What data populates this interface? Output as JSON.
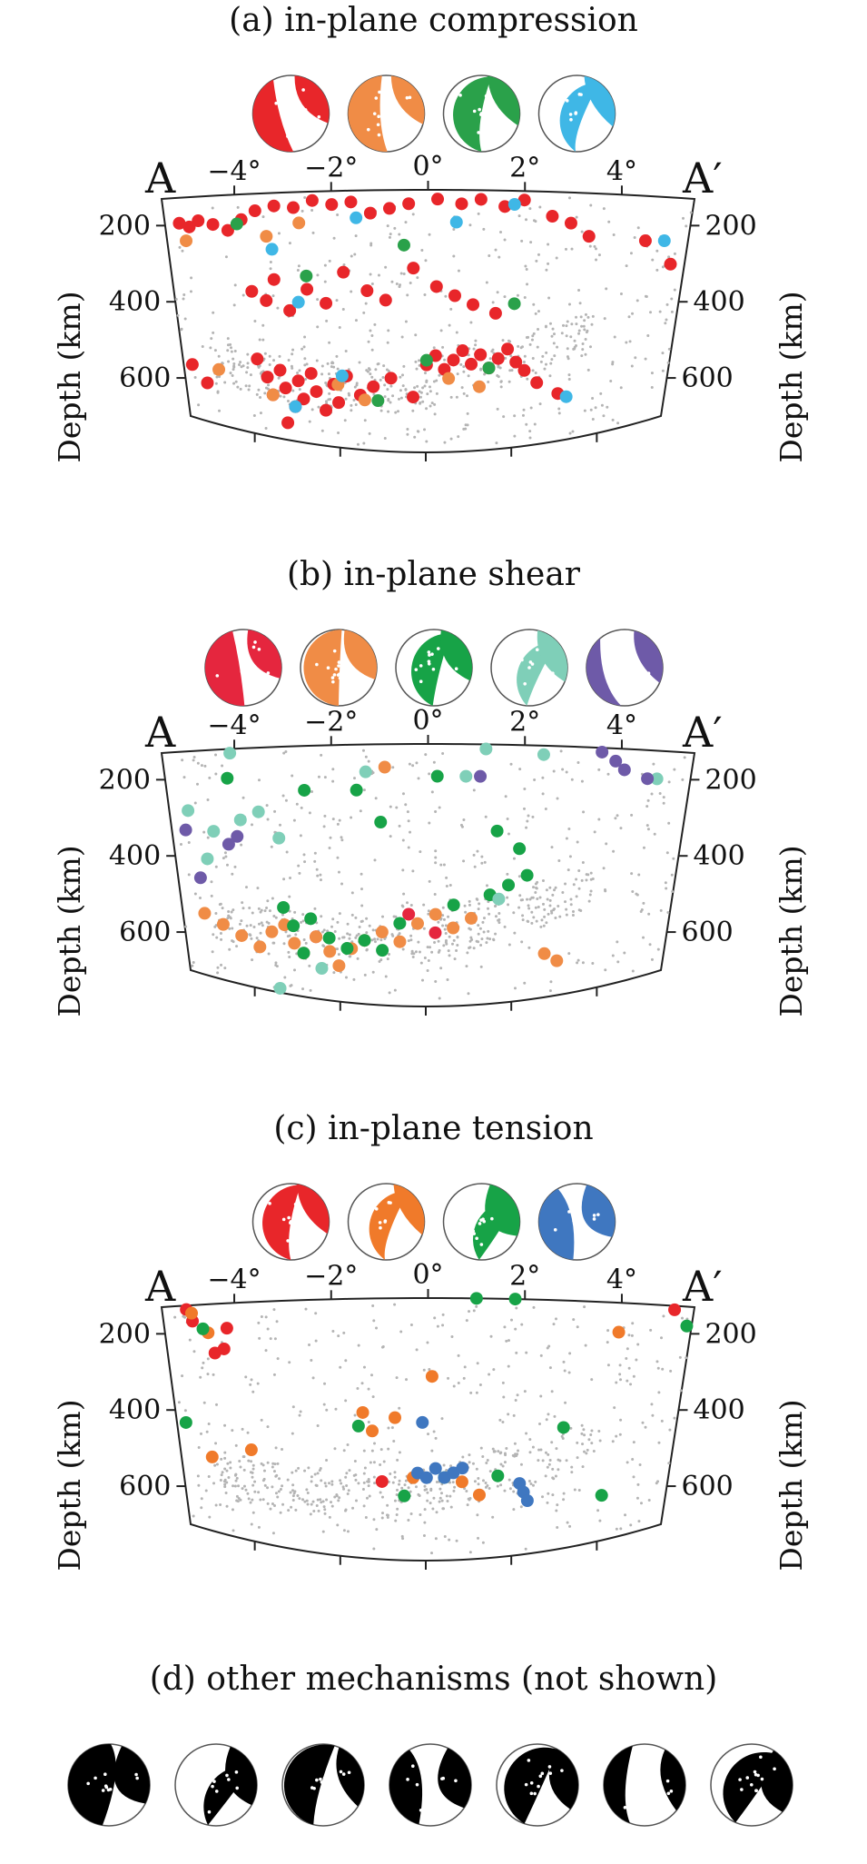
{
  "chart_data": [
    {
      "type": "scatter",
      "title": "(a) in-plane compression",
      "section_start_label": "A",
      "section_end_label": "A′",
      "xlabel": "",
      "ylabel": "Depth (km)",
      "xlim": [
        -5.5,
        5.5
      ],
      "ylim": [
        700,
        130
      ],
      "x_tick_labels": [
        "−4°",
        "−2°",
        "0°",
        "2°",
        "4°"
      ],
      "y_tick_labels": [
        "200",
        "400",
        "600"
      ],
      "mechanism_colors": [
        "#e8262a",
        "#f08c46",
        "#2aa14a",
        "#3fb7e6"
      ],
      "series": [
        {
          "color": "#e8262a",
          "points": [
            [
              -5.2,
              195
            ],
            [
              -5.0,
              205
            ],
            [
              -4.8,
              190
            ],
            [
              -4.5,
              200
            ],
            [
              -4.2,
              215
            ],
            [
              -3.9,
              190
            ],
            [
              -3.6,
              170
            ],
            [
              -3.2,
              160
            ],
            [
              -2.8,
              165
            ],
            [
              -2.4,
              150
            ],
            [
              -2.0,
              160
            ],
            [
              -1.6,
              155
            ],
            [
              -1.2,
              180
            ],
            [
              -0.8,
              170
            ],
            [
              -0.4,
              160
            ],
            [
              0.2,
              150
            ],
            [
              0.7,
              160
            ],
            [
              1.1,
              150
            ],
            [
              1.6,
              165
            ],
            [
              2.0,
              150
            ],
            [
              2.6,
              185
            ],
            [
              3.0,
              200
            ],
            [
              3.4,
              230
            ],
            [
              4.6,
              240
            ],
            [
              5.2,
              300
            ],
            [
              -3.8,
              360
            ],
            [
              -3.5,
              380
            ],
            [
              -3.3,
              330
            ],
            [
              -3.0,
              400
            ],
            [
              -2.6,
              350
            ],
            [
              -2.2,
              380
            ],
            [
              -1.8,
              310
            ],
            [
              -1.3,
              350
            ],
            [
              -0.9,
              370
            ],
            [
              -0.3,
              300
            ],
            [
              0.2,
              340
            ],
            [
              0.6,
              360
            ],
            [
              1.0,
              380
            ],
            [
              1.5,
              400
            ],
            [
              -3.8,
              520
            ],
            [
              -3.6,
              560
            ],
            [
              -3.5,
              600
            ],
            [
              -3.3,
              540
            ],
            [
              -3.2,
              580
            ],
            [
              -3.0,
              620
            ],
            [
              -2.9,
              560
            ],
            [
              -2.8,
              600
            ],
            [
              -2.6,
              540
            ],
            [
              -2.5,
              580
            ],
            [
              -2.3,
              620
            ],
            [
              -2.1,
              560
            ],
            [
              -2.0,
              600
            ],
            [
              -1.8,
              540
            ],
            [
              -1.5,
              580
            ],
            [
              -1.2,
              560
            ],
            [
              -0.8,
              540
            ],
            [
              -0.3,
              580
            ],
            [
              0.0,
              510
            ],
            [
              0.2,
              490
            ],
            [
              0.4,
              520
            ],
            [
              0.6,
              500
            ],
            [
              0.8,
              480
            ],
            [
              1.0,
              510
            ],
            [
              1.2,
              490
            ],
            [
              1.4,
              520
            ],
            [
              1.6,
              500
            ],
            [
              1.8,
              480
            ],
            [
              2.0,
              510
            ],
            [
              2.2,
              530
            ],
            [
              2.5,
              560
            ],
            [
              3.0,
              590
            ],
            [
              -5.3,
              560
            ],
            [
              -5.0,
              600
            ],
            [
              -3.2,
              660
            ]
          ]
        },
        {
          "color": "#f08c46",
          "points": [
            [
              -5.1,
              240
            ],
            [
              -3.4,
              230
            ],
            [
              -2.7,
              200
            ],
            [
              -3.5,
              600
            ],
            [
              -2.0,
              560
            ],
            [
              1.2,
              560
            ],
            [
              -4.7,
              560
            ],
            [
              -1.4,
              590
            ],
            [
              0.5,
              540
            ]
          ]
        },
        {
          "color": "#2aa14a",
          "points": [
            [
              -4.0,
              200
            ],
            [
              -0.5,
              250
            ],
            [
              1.9,
              380
            ],
            [
              -2.6,
              320
            ],
            [
              0.0,
              500
            ],
            [
              -1.1,
              590
            ],
            [
              1.4,
              520
            ]
          ]
        },
        {
          "color": "#3fb7e6",
          "points": [
            [
              -3.3,
              260
            ],
            [
              -1.5,
              190
            ],
            [
              0.6,
              200
            ],
            [
              1.8,
              160
            ],
            [
              -2.8,
              380
            ],
            [
              -3.0,
              620
            ],
            [
              5.0,
              240
            ],
            [
              3.2,
              600
            ],
            [
              -1.9,
              540
            ]
          ]
        }
      ]
    },
    {
      "type": "scatter",
      "title": "(b) in-plane shear",
      "section_start_label": "A",
      "section_end_label": "A′",
      "xlabel": "",
      "ylabel": "Depth (km)",
      "xlim": [
        -5.5,
        5.5
      ],
      "ylim": [
        700,
        130
      ],
      "x_tick_labels": [
        "−4°",
        "−2°",
        "0°",
        "2°",
        "4°"
      ],
      "y_tick_labels": [
        "200",
        "400",
        "600"
      ],
      "mechanism_colors": [
        "#e5263e",
        "#f08c46",
        "#17a347",
        "#7fcfb8",
        "#6e5aa8"
      ],
      "series": [
        {
          "color": "#e5263e",
          "points": [
            [
              -0.4,
              500
            ],
            [
              0.2,
              540
            ],
            [
              -2.5,
              560
            ]
          ]
        },
        {
          "color": "#f08c46",
          "points": [
            [
              -5.0,
              540
            ],
            [
              -4.6,
              560
            ],
            [
              -4.2,
              580
            ],
            [
              -3.8,
              600
            ],
            [
              -3.5,
              560
            ],
            [
              -3.2,
              540
            ],
            [
              -3.0,
              580
            ],
            [
              -2.8,
              600
            ],
            [
              -2.5,
              560
            ],
            [
              -2.2,
              590
            ],
            [
              -2.0,
              620
            ],
            [
              -1.7,
              580
            ],
            [
              -1.4,
              560
            ],
            [
              -1.0,
              540
            ],
            [
              -0.6,
              560
            ],
            [
              -0.2,
              520
            ],
            [
              0.2,
              500
            ],
            [
              0.6,
              530
            ],
            [
              1.0,
              510
            ],
            [
              2.7,
              600
            ],
            [
              3.0,
              620
            ],
            [
              -0.9,
              180
            ]
          ]
        },
        {
          "color": "#17a347",
          "points": [
            [
              -4.2,
              200
            ],
            [
              -2.6,
              230
            ],
            [
              -1.5,
              230
            ],
            [
              -1.0,
              300
            ],
            [
              0.2,
              200
            ],
            [
              1.5,
              320
            ],
            [
              2.0,
              360
            ],
            [
              2.2,
              420
            ],
            [
              -3.2,
              500
            ],
            [
              -3.0,
              540
            ],
            [
              -2.6,
              520
            ],
            [
              -2.2,
              560
            ],
            [
              -1.8,
              580
            ],
            [
              -1.4,
              560
            ],
            [
              -1.0,
              580
            ],
            [
              -0.6,
              520
            ],
            [
              0.6,
              480
            ],
            [
              1.4,
              460
            ],
            [
              1.8,
              440
            ],
            [
              -2.8,
              600
            ]
          ]
        },
        {
          "color": "#7fcfb8",
          "points": [
            [
              -4.1,
              140
            ],
            [
              -1.3,
              190
            ],
            [
              1.2,
              140
            ],
            [
              2.4,
              150
            ],
            [
              4.8,
              200
            ],
            [
              -5.1,
              280
            ],
            [
              -4.6,
              330
            ],
            [
              -4.0,
              300
            ],
            [
              -3.6,
              280
            ],
            [
              -3.2,
              340
            ],
            [
              -4.8,
              400
            ],
            [
              0.8,
              200
            ],
            [
              -2.4,
              630
            ],
            [
              -3.4,
              690
            ],
            [
              1.6,
              470
            ]
          ]
        },
        {
          "color": "#6e5aa8",
          "points": [
            [
              -5.2,
              330
            ],
            [
              -4.3,
              360
            ],
            [
              -4.1,
              340
            ],
            [
              -5.0,
              450
            ],
            [
              1.1,
              200
            ],
            [
              3.6,
              140
            ],
            [
              4.1,
              180
            ],
            [
              4.6,
              200
            ],
            [
              3.9,
              160
            ]
          ]
        }
      ]
    },
    {
      "type": "scatter",
      "title": "(c) in-plane tension",
      "section_start_label": "A",
      "section_end_label": "A′",
      "xlabel": "",
      "ylabel": "Depth (km)",
      "xlim": [
        -5.5,
        5.5
      ],
      "ylim": [
        700,
        130
      ],
      "x_tick_labels": [
        "−4°",
        "−2°",
        "0°",
        "2°",
        "4°"
      ],
      "y_tick_labels": [
        "200",
        "400",
        "600"
      ],
      "mechanism_colors": [
        "#e8262a",
        "#f07a2a",
        "#17a347",
        "#3f77c0"
      ],
      "series": [
        {
          "color": "#e8262a",
          "points": [
            [
              -5.0,
              140
            ],
            [
              -4.9,
              170
            ],
            [
              -4.5,
              250
            ],
            [
              -4.3,
              240
            ],
            [
              -4.2,
              190
            ],
            [
              5.1,
              140
            ],
            [
              -1.0,
              530
            ]
          ]
        },
        {
          "color": "#f07a2a",
          "points": [
            [
              -4.9,
              150
            ],
            [
              -4.6,
              200
            ],
            [
              -4.8,
              510
            ],
            [
              -3.9,
              480
            ],
            [
              -1.4,
              380
            ],
            [
              -1.2,
              420
            ],
            [
              -0.7,
              390
            ],
            [
              0.1,
              300
            ],
            [
              -0.3,
              520
            ],
            [
              0.8,
              530
            ],
            [
              1.2,
              560
            ],
            [
              4.0,
              200
            ]
          ]
        },
        {
          "color": "#17a347",
          "points": [
            [
              -5.3,
              430
            ],
            [
              -4.7,
              190
            ],
            [
              -1.5,
              410
            ],
            [
              1.0,
              130
            ],
            [
              1.8,
              130
            ],
            [
              3.0,
              420
            ],
            [
              4.0,
              590
            ],
            [
              0.4,
              520
            ],
            [
              -0.5,
              560
            ],
            [
              5.4,
              180
            ],
            [
              1.6,
              520
            ]
          ]
        },
        {
          "color": "#3f77c0",
          "points": [
            [
              -0.2,
              510
            ],
            [
              0.0,
              520
            ],
            [
              0.2,
              500
            ],
            [
              0.4,
              520
            ],
            [
              0.6,
              510
            ],
            [
              0.8,
              500
            ],
            [
              -0.1,
              400
            ],
            [
              2.1,
              540
            ],
            [
              2.2,
              560
            ],
            [
              2.3,
              580
            ]
          ]
        }
      ]
    }
  ],
  "panel_d_title": "(d) other mechanisms (not shown)"
}
